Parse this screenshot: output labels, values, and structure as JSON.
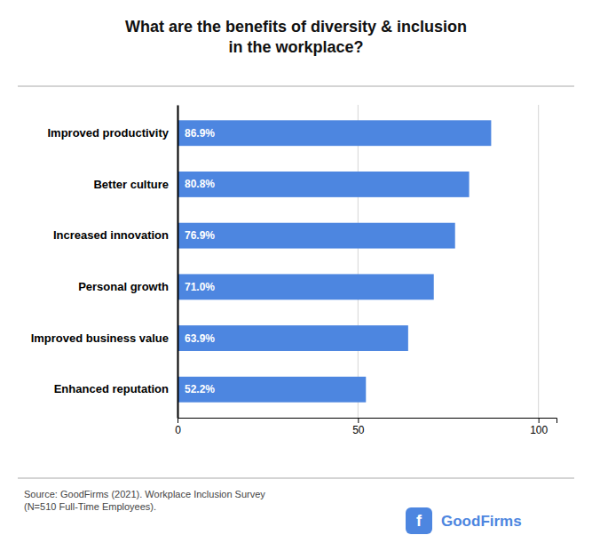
{
  "chart_data": {
    "type": "bar",
    "orientation": "horizontal",
    "title": "What are the benefits of diversity & inclusion\nin the workplace?",
    "categories": [
      "Enhanced reputation",
      "Improved business value",
      "Personal growth",
      "Increased innovation",
      "Better culture",
      "Improved productivity"
    ],
    "values": [
      52.2,
      63.9,
      71.0,
      76.9,
      80.8,
      86.9
    ],
    "value_labels": [
      "52.2%",
      "63.9%",
      "71.0%",
      "76.9%",
      "80.8%",
      "86.9%"
    ],
    "data_labels": true,
    "color": "#4d86e0",
    "xlim": [
      0,
      105
    ],
    "xticks": [
      0,
      50,
      100
    ],
    "grid": true,
    "annotations": [
      "Source: GoodFirms (2021). Workplace Inclusion Survey\n(N=510 Full-Time Employees).",
      "f",
      "GoodFirms"
    ]
  }
}
